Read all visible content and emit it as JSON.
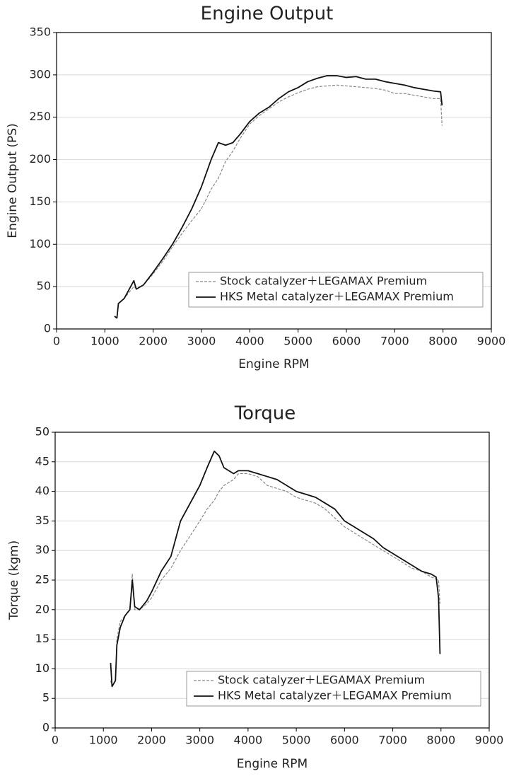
{
  "chart_data": [
    {
      "type": "line",
      "title": "Engine Output",
      "x_label": "Engine RPM",
      "y_label": "Engine Output (PS)",
      "x": [
        1200,
        1250,
        1280,
        1400,
        1600,
        1650,
        1800,
        2000,
        2200,
        2400,
        2600,
        2800,
        3000,
        3200,
        3350,
        3500,
        3650,
        3800,
        4000,
        4200,
        4400,
        4600,
        4800,
        5000,
        5200,
        5400,
        5600,
        5800,
        6000,
        6200,
        6400,
        6600,
        6800,
        7000,
        7200,
        7400,
        7600,
        7800,
        7950,
        7980
      ],
      "series": [
        {
          "name": "Stock catalyzer＋LEGAMAX Premium",
          "color": "#888888",
          "dashed": true,
          "values": [
            15,
            12,
            30,
            36,
            50,
            48,
            52,
            65,
            80,
            97,
            113,
            128,
            142,
            165,
            178,
            198,
            210,
            225,
            242,
            252,
            260,
            268,
            274,
            279,
            283,
            286,
            287,
            288,
            287,
            286,
            285,
            284,
            282,
            278,
            278,
            276,
            274,
            272,
            272,
            240
          ]
        },
        {
          "name": "HKS Metal catalyzer＋LEGAMAX Premium",
          "color": "#111111",
          "dashed": false,
          "values": [
            15,
            13,
            30,
            36,
            57,
            47,
            52,
            67,
            83,
            100,
            120,
            142,
            168,
            200,
            220,
            217,
            220,
            230,
            245,
            255,
            262,
            272,
            280,
            285,
            292,
            296,
            299,
            299,
            297,
            298,
            295,
            295,
            292,
            290,
            288,
            285,
            283,
            281,
            280,
            264
          ]
        }
      ],
      "xlim": [
        0,
        9000
      ],
      "xticks": [
        0,
        1000,
        2000,
        3000,
        4000,
        5000,
        6000,
        7000,
        8000,
        9000
      ],
      "ylim": [
        0,
        350
      ],
      "yticks": [
        0,
        50,
        100,
        150,
        200,
        250,
        300,
        350
      ],
      "grid": "y",
      "legend": "lower right"
    },
    {
      "type": "line",
      "title": "Torque",
      "x_label": "Engine RPM",
      "y_label": "Torque (kgm)",
      "x": [
        1150,
        1180,
        1250,
        1280,
        1350,
        1450,
        1550,
        1600,
        1650,
        1750,
        1900,
        2000,
        2200,
        2400,
        2600,
        2800,
        3000,
        3150,
        3300,
        3400,
        3500,
        3700,
        3800,
        4000,
        4200,
        4400,
        4600,
        4800,
        5000,
        5200,
        5400,
        5600,
        5800,
        6000,
        6200,
        6400,
        6600,
        6800,
        7000,
        7200,
        7400,
        7600,
        7800,
        7900,
        7950,
        7980
      ],
      "series": [
        {
          "name": "Stock catalyzer＋LEGAMAX Premium",
          "color": "#888888",
          "dashed": true,
          "values": [
            8,
            7,
            8,
            15,
            18,
            19,
            20,
            26,
            20,
            20,
            21,
            22,
            25,
            27,
            30,
            32.5,
            35,
            37,
            38.5,
            40,
            41,
            42,
            43,
            43,
            42.5,
            41,
            40.5,
            40,
            39,
            38.5,
            38,
            37,
            35.5,
            34,
            33,
            32,
            31,
            30,
            29,
            28,
            27,
            26.5,
            25.5,
            25.2,
            25,
            21
          ]
        },
        {
          "name": "HKS Metal catalyzer＋LEGAMAX Premium",
          "color": "#111111",
          "dashed": false,
          "values": [
            11,
            7,
            8,
            14,
            17,
            19,
            20,
            25,
            20.5,
            20,
            21.5,
            23,
            26.5,
            29,
            35,
            38,
            41,
            44,
            46.8,
            46,
            44,
            43,
            43.5,
            43.5,
            43,
            42.5,
            42,
            41,
            40,
            39.5,
            39,
            38,
            37,
            35,
            34,
            33,
            32,
            30.5,
            29.5,
            28.5,
            27.5,
            26.5,
            26,
            25.5,
            22,
            12.5
          ]
        }
      ],
      "xlim": [
        0,
        9000
      ],
      "xticks": [
        0,
        1000,
        2000,
        3000,
        4000,
        5000,
        6000,
        7000,
        8000,
        9000
      ],
      "ylim": [
        0,
        50
      ],
      "yticks": [
        0,
        5,
        10,
        15,
        20,
        25,
        30,
        35,
        40,
        45,
        50
      ],
      "grid": "y",
      "legend": "lower right"
    }
  ]
}
